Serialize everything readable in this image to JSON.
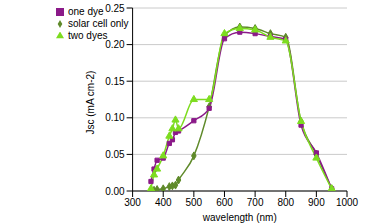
{
  "chart_data": {
    "type": "line",
    "x_label": "wavelength (nm)",
    "y_label": "Jsc (mA cm-2)",
    "x": [
      360,
      370,
      380,
      400,
      420,
      430,
      440,
      450,
      500,
      550,
      600,
      650,
      700,
      750,
      800,
      850,
      900,
      950
    ],
    "series": [
      {
        "name": "solar cell only",
        "color": "#5f8a2a",
        "marker": "diamond",
        "line_style": "smooth",
        "values": [
          0.0,
          0.001,
          0.002,
          0.003,
          0.006,
          0.007,
          0.008,
          0.015,
          0.048,
          0.115,
          0.212,
          0.224,
          0.222,
          0.215,
          0.21,
          0.095,
          0.05,
          0.003
        ]
      },
      {
        "name": "one dye",
        "color": "#8b1a89",
        "marker": "square",
        "line_style": "smooth",
        "values": [
          0.013,
          0.03,
          0.042,
          0.045,
          0.065,
          0.07,
          0.08,
          0.082,
          0.096,
          0.113,
          0.208,
          0.217,
          0.215,
          0.211,
          0.207,
          0.09,
          0.052,
          0.003
        ]
      },
      {
        "name": "two dyes",
        "color": "#7ddc1f",
        "marker": "triangle",
        "line_style": "smooth",
        "values": [
          0.003,
          0.022,
          0.03,
          0.048,
          0.075,
          0.085,
          0.097,
          0.085,
          0.125,
          0.125,
          0.215,
          0.222,
          0.22,
          0.21,
          0.205,
          0.095,
          0.045,
          0.003
        ]
      }
    ],
    "xlim": [
      300,
      1000
    ],
    "xticks": [
      300,
      400,
      500,
      600,
      700,
      800,
      900,
      1000
    ],
    "ylim": [
      0,
      0.25
    ],
    "yticks": [
      {
        "value": 0,
        "label": "0.00"
      },
      {
        "value": 0.05,
        "label": "0.05"
      },
      {
        "value": 0.1,
        "label": "0.10"
      },
      {
        "value": 0.15,
        "label": "0.15"
      },
      {
        "value": 0.2,
        "label": "0.20"
      },
      {
        "value": 0.25,
        "label": "0.25"
      }
    ],
    "grid": true,
    "legend": "upper left"
  }
}
